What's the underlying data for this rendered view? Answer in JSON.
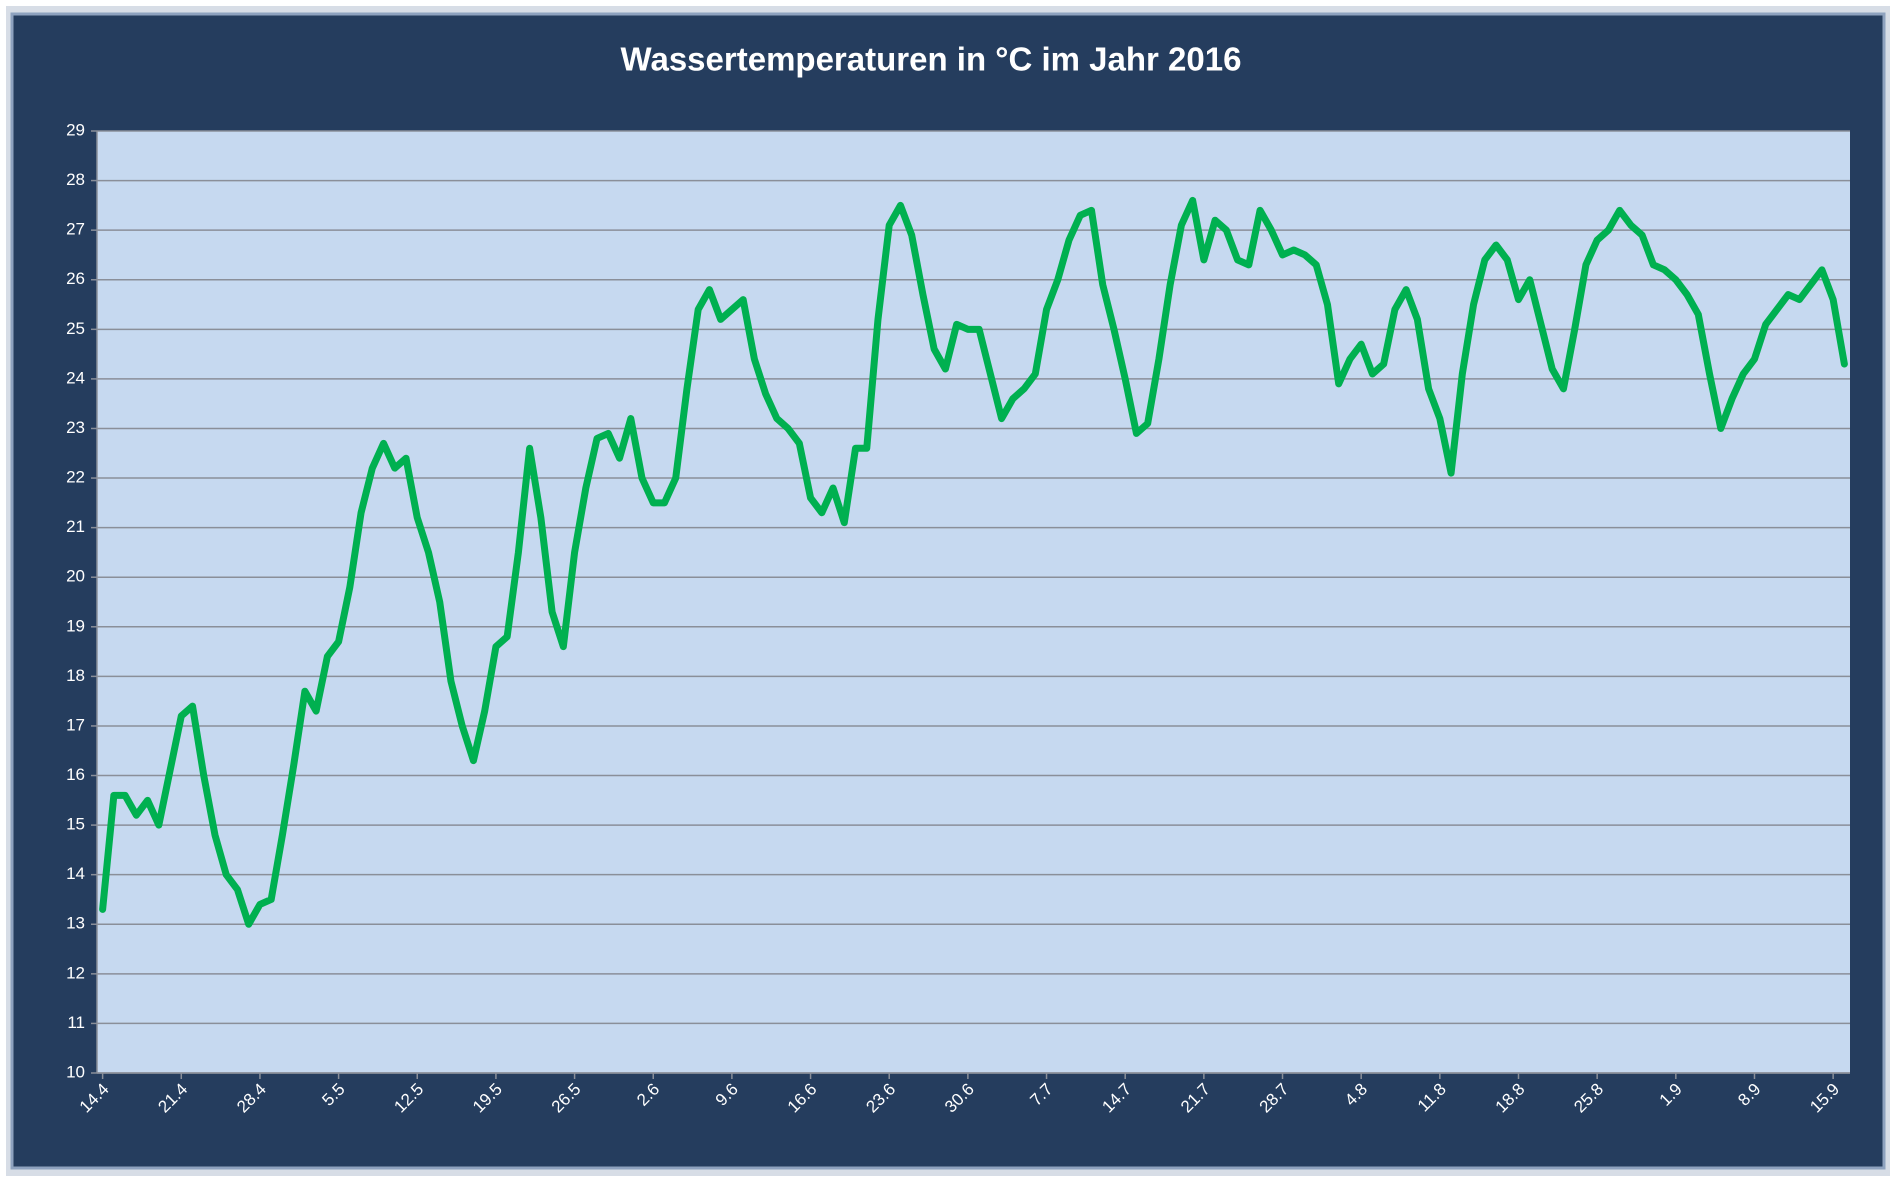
{
  "chart_data": {
    "type": "line",
    "title": "Wassertemperaturen in °C  im Jahr 2016",
    "categories": [
      "14.4",
      null,
      null,
      null,
      null,
      null,
      null,
      "21.4",
      null,
      null,
      null,
      null,
      null,
      null,
      "28.4",
      null,
      null,
      null,
      null,
      null,
      null,
      "5.5",
      null,
      null,
      null,
      null,
      null,
      null,
      "12.5",
      null,
      null,
      null,
      null,
      null,
      null,
      "19.5",
      null,
      null,
      null,
      null,
      null,
      null,
      "26.5",
      null,
      null,
      null,
      null,
      null,
      null,
      "2.6",
      null,
      null,
      null,
      null,
      null,
      null,
      "9.6",
      null,
      null,
      null,
      null,
      null,
      null,
      "16.6",
      null,
      null,
      null,
      null,
      null,
      null,
      "23.6",
      null,
      null,
      null,
      null,
      null,
      null,
      "30.6",
      null,
      null,
      null,
      null,
      null,
      null,
      "7.7",
      null,
      null,
      null,
      null,
      null,
      null,
      "14.7",
      null,
      null,
      null,
      null,
      null,
      null,
      "21.7",
      null,
      null,
      null,
      null,
      null,
      null,
      "28.7",
      null,
      null,
      null,
      null,
      null,
      null,
      "4.8",
      null,
      null,
      null,
      null,
      null,
      null,
      "11.8",
      null,
      null,
      null,
      null,
      null,
      null,
      "18.8",
      null,
      null,
      null,
      null,
      null,
      null,
      "25.8",
      null,
      null,
      null,
      null,
      null,
      null,
      "1.9",
      null,
      null,
      null,
      null,
      null,
      null,
      "8.9",
      null,
      null,
      null,
      null,
      null,
      null,
      "15.9",
      null
    ],
    "values": [
      13.3,
      15.6,
      15.6,
      15.2,
      15.5,
      15.0,
      16.1,
      17.2,
      17.4,
      16.0,
      14.8,
      14.0,
      13.7,
      13.0,
      13.4,
      13.5,
      14.8,
      16.2,
      17.7,
      17.3,
      18.4,
      18.7,
      19.8,
      21.3,
      22.2,
      22.7,
      22.2,
      22.4,
      21.2,
      20.5,
      19.5,
      17.9,
      17.0,
      16.3,
      17.3,
      18.6,
      18.8,
      20.5,
      22.6,
      21.2,
      19.3,
      18.6,
      20.5,
      21.8,
      22.8,
      22.9,
      22.4,
      23.2,
      22.0,
      21.5,
      21.5,
      22.0,
      23.8,
      25.4,
      25.8,
      25.2,
      25.4,
      25.6,
      24.4,
      23.7,
      23.2,
      23.0,
      22.7,
      21.6,
      21.3,
      21.8,
      21.1,
      22.6,
      22.6,
      25.2,
      27.1,
      27.5,
      26.9,
      25.7,
      24.6,
      24.2,
      25.1,
      25.0,
      25.0,
      24.1,
      23.2,
      23.6,
      23.8,
      24.1,
      25.4,
      26.0,
      26.8,
      27.3,
      27.4,
      25.9,
      25.0,
      24.0,
      22.9,
      23.1,
      24.4,
      25.9,
      27.1,
      27.6,
      26.4,
      27.2,
      27.0,
      26.4,
      26.3,
      27.4,
      27.0,
      26.5,
      26.6,
      26.5,
      26.3,
      25.5,
      23.9,
      24.4,
      24.7,
      24.1,
      24.3,
      25.4,
      25.8,
      25.2,
      23.8,
      23.2,
      22.1,
      24.1,
      25.5,
      26.4,
      26.7,
      26.4,
      25.6,
      26.0,
      25.1,
      24.2,
      23.8,
      25.0,
      26.3,
      26.8,
      27.0,
      27.4,
      27.1,
      26.9,
      26.3,
      26.2,
      26.0,
      25.7,
      25.3,
      24.1,
      23.0,
      23.6,
      24.1,
      24.4,
      25.1,
      25.4,
      25.7,
      25.6,
      25.9,
      26.2,
      25.6,
      24.3
    ],
    "color": "#00b050",
    "ylim": [
      10,
      29
    ],
    "yticks": [
      10,
      11,
      12,
      13,
      14,
      15,
      16,
      17,
      18,
      19,
      20,
      21,
      22,
      23,
      24,
      25,
      26,
      27,
      28,
      29
    ],
    "grid": true
  }
}
